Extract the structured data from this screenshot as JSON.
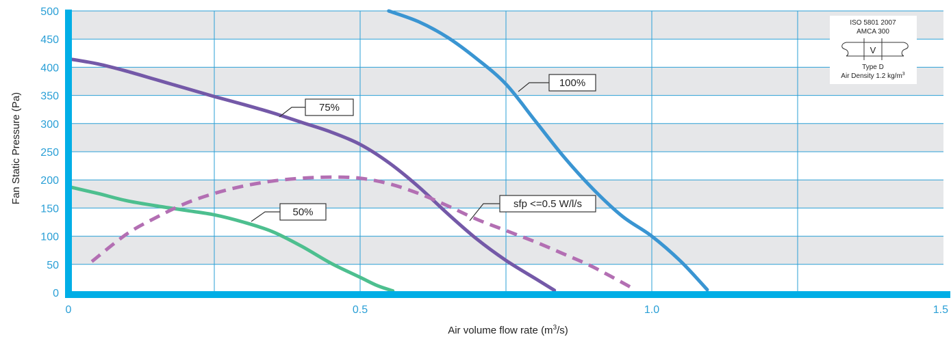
{
  "chart_data": {
    "type": "line",
    "title": "",
    "xlabel": "Air volume flow rate (m",
    "xlabel_sup": "3",
    "xlabel_tail": "/s)",
    "ylabel": "Fan Static Pressure (Pa)",
    "xlim": [
      0,
      1.5
    ],
    "ylim": [
      0,
      500
    ],
    "x_ticks": [
      {
        "value": 0,
        "label": "0"
      },
      {
        "value": 0.5,
        "label": "0.5"
      },
      {
        "value": 1.0,
        "label": "1.0"
      },
      {
        "value": 1.5,
        "label": "1.5"
      }
    ],
    "y_ticks": [
      {
        "value": 0,
        "label": "0"
      },
      {
        "value": 50,
        "label": "50"
      },
      {
        "value": 100,
        "label": "100"
      },
      {
        "value": 150,
        "label": "150"
      },
      {
        "value": 200,
        "label": "200"
      },
      {
        "value": 250,
        "label": "250"
      },
      {
        "value": 300,
        "label": "300"
      },
      {
        "value": 350,
        "label": "350"
      },
      {
        "value": 400,
        "label": "400"
      },
      {
        "value": 450,
        "label": "450"
      },
      {
        "value": 500,
        "label": "500"
      }
    ],
    "x_gridlines": [
      0.25,
      0.5,
      0.75,
      1.0,
      1.25
    ],
    "grid": true,
    "colors": {
      "axis": "#00aee6",
      "grid": "#2a9fd6",
      "band": "#e6e7e9",
      "tick_text": "#2a9fd6"
    },
    "series": [
      {
        "name": "100%",
        "color": "#3a95d2",
        "dashed": false,
        "x": [
          0.549,
          0.6,
          0.65,
          0.7,
          0.75,
          0.8,
          0.85,
          0.9,
          0.95,
          1.0,
          1.05,
          1.095
        ],
        "y": [
          500,
          481,
          453,
          415,
          370,
          305,
          240,
          183,
          135,
          100,
          55,
          5
        ]
      },
      {
        "name": "75%",
        "color": "#7459a8",
        "dashed": false,
        "x": [
          0.0,
          0.05,
          0.1,
          0.15,
          0.2,
          0.25,
          0.3,
          0.35,
          0.4,
          0.45,
          0.5,
          0.55,
          0.6,
          0.65,
          0.7,
          0.75,
          0.8,
          0.833
        ],
        "y": [
          415,
          406,
          393,
          378,
          363,
          348,
          334,
          319,
          302,
          285,
          263,
          230,
          188,
          140,
          95,
          57,
          25,
          4
        ]
      },
      {
        "name": "50%",
        "color": "#4dbf8f",
        "dashed": false,
        "x": [
          0.0,
          0.05,
          0.1,
          0.15,
          0.2,
          0.25,
          0.3,
          0.35,
          0.4,
          0.45,
          0.5,
          0.53,
          0.556
        ],
        "y": [
          188,
          176,
          163,
          154,
          146,
          138,
          125,
          108,
          82,
          52,
          27,
          12,
          3
        ]
      },
      {
        "name": "sfp <=0.5 W/l/s",
        "color": "#b36fb3",
        "dashed": true,
        "x": [
          0.04,
          0.1,
          0.15,
          0.2,
          0.25,
          0.3,
          0.35,
          0.4,
          0.45,
          0.5,
          0.55,
          0.6,
          0.65,
          0.7,
          0.75,
          0.8,
          0.85,
          0.9,
          0.97
        ],
        "y": [
          55,
          104,
          133,
          158,
          176,
          189,
          198,
          203,
          205,
          203,
          193,
          176,
          154,
          130,
          110,
          90,
          68,
          45,
          6
        ]
      }
    ],
    "annotations": [
      {
        "text": "100%",
        "series": 0
      },
      {
        "text": "75%",
        "series": 1
      },
      {
        "text": "50%",
        "series": 2
      },
      {
        "text": "sfp <=0.5 W/l/s",
        "series": 3
      }
    ],
    "badge": {
      "line1": "ISO 5801 2007",
      "line2": "AMCA 300",
      "symbol": "V",
      "line3": "Type D",
      "line4": "Air Density 1.2 kg/m",
      "line4_sup": "3"
    }
  }
}
